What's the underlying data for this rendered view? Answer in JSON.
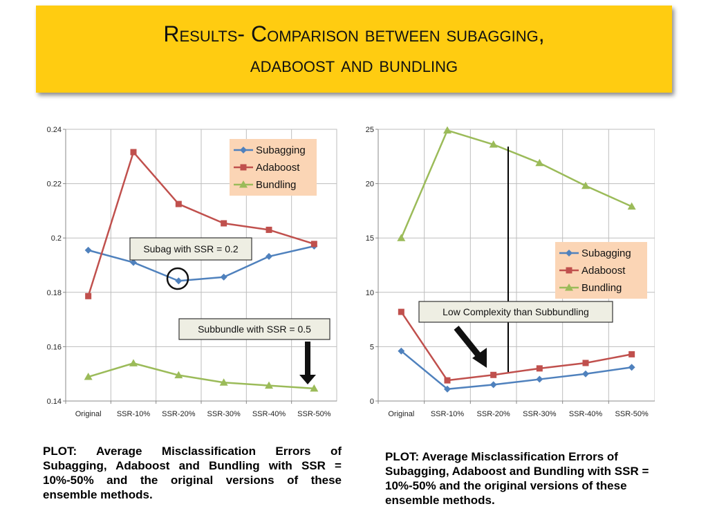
{
  "title": {
    "line1": "Results- Comparison between subagging,",
    "line2": "adaboost and bundling"
  },
  "chart_data": [
    {
      "type": "line",
      "categories": [
        "Original",
        "SSR-10%",
        "SSR-20%",
        "SSR-30%",
        "SSR-40%",
        "SSR-50%"
      ],
      "series": [
        {
          "name": "Subagging",
          "values": [
            0.1955,
            0.191,
            0.1842,
            0.1856,
            0.1932,
            0.197
          ],
          "color": "#4f81bd",
          "marker": "diamond"
        },
        {
          "name": "Adaboost",
          "values": [
            0.1786,
            0.2316,
            0.2125,
            0.2054,
            0.203,
            0.1978
          ],
          "color": "#c0504d",
          "marker": "square"
        },
        {
          "name": "Bundling",
          "values": [
            0.1489,
            0.1539,
            0.1495,
            0.1468,
            0.1457,
            0.1446
          ],
          "color": "#9bbb59",
          "marker": "triangle"
        }
      ],
      "ylim": [
        0.14,
        0.24
      ],
      "yticks": [
        "0.14",
        "0.16",
        "0.18",
        "0.2",
        "0.22",
        "0.24"
      ],
      "grid": true,
      "legend": "top-right",
      "annotations": [
        "Subag with SSR = 0.2",
        "Subbundle with SSR = 0.5"
      ]
    },
    {
      "type": "line",
      "categories": [
        "Original",
        "SSR-10%",
        "SSR-20%",
        "SSR-30%",
        "SSR-40%",
        "SSR-50%"
      ],
      "series": [
        {
          "name": "Subagging",
          "values": [
            4.6,
            1.1,
            1.5,
            2.0,
            2.5,
            3.1
          ],
          "color": "#4f81bd",
          "marker": "diamond"
        },
        {
          "name": "Adaboost",
          "values": [
            8.2,
            1.9,
            2.4,
            3.0,
            3.5,
            4.3
          ],
          "color": "#c0504d",
          "marker": "square"
        },
        {
          "name": "Bundling",
          "values": [
            15.0,
            24.9,
            23.6,
            21.9,
            19.8,
            17.9
          ],
          "color": "#9bbb59",
          "marker": "triangle"
        }
      ],
      "ylim": [
        0,
        25
      ],
      "yticks": [
        "0",
        "5",
        "10",
        "15",
        "20",
        "25"
      ],
      "grid": true,
      "legend": "right",
      "annotations": [
        "Low Complexity than Subbundling"
      ]
    }
  ],
  "captions": {
    "left": "PLOT: Average Misclassification Errors of Subagging, Adaboost and Bundling with SSR = 10%-50% and the original versions of these ensemble methods.",
    "right": "PLOT: Average Misclassification Errors of Subagging, Adaboost and Bundling with SSR = 10%-50% and the original versions of these ensemble methods."
  }
}
